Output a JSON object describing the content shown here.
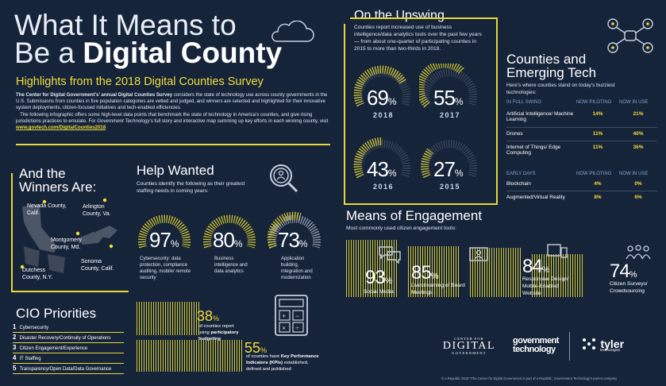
{
  "title": {
    "line1": "What It Means to",
    "line2a": "Be a ",
    "line2b": "Digital County"
  },
  "subtitle": "Highlights from the 2018 Digital Counties Survey",
  "intro": {
    "bold": "The Center for Digital Government's’ annual Digital Counties Survey",
    "text1": " considers the state of technology use across county governments in the U.S. Submissions from counties in five population categories are vetted and judged, and winners are selected and highlighted for their innovative system deployments, citizen-focused initiatives and tech-enabled efficiencies.",
    "text2": "The following infographic offers some high-level data points that benchmark the state of technology in America’s counties, and give rising jurisdictions practices to emulate. For ",
    "italic": "Government Technology",
    "text3": "’s full story and interactive map summing up key efforts in each winning county, visit ",
    "link": "www.govtech.com/DigitalCounties2018"
  },
  "winners": {
    "heading1": "And the",
    "heading2": "Winners Are:",
    "places": [
      "Nevada County, Calif.",
      "Arlington County, Va.",
      "Montgomery County, Md.",
      "Sonoma County, Calif.",
      "Dutchess County, N.Y."
    ]
  },
  "help": {
    "heading": "Help Wanted",
    "desc": "Counties identify the following as their greatest staffing needs in coming years:",
    "items": [
      {
        "value": "97",
        "label": "Cybersecurity: data protection, compliance auditing, mobile/ remote security"
      },
      {
        "value": "80",
        "label": "Business intelligence and data analytics"
      },
      {
        "value": "73",
        "label": "Application building, integration and modernization"
      }
    ]
  },
  "cio": {
    "heading": "CIO Priorities",
    "items": [
      {
        "n": "1",
        "label": "Cybersecurity"
      },
      {
        "n": "2",
        "label": "Disaster Recovery/Continuity of Operations"
      },
      {
        "n": "3",
        "label": "Citizen Engagement/Experience"
      },
      {
        "n": "4",
        "label": "IT Staffing"
      },
      {
        "n": "5",
        "label": "Transparency/Open Data/Data Governance"
      }
    ]
  },
  "budget": {
    "v1": "38",
    "t1a": "of counties report using ",
    "t1b": "participatory budgeting",
    "v2": "55",
    "t2a": "of counties have ",
    "t2b": "Key Performance Indicators (KPIs)",
    "t2c": " established, defined and published"
  },
  "upswing": {
    "heading": "On the Upswing",
    "desc": "Counties report increased use of business intelligence/data analytics tools over the past few years — from about one-quarter of participating counties in 2015 to more than two-thirds in 2018.",
    "gauges": [
      {
        "value": "69",
        "year": "2018"
      },
      {
        "value": "55",
        "year": "2017"
      },
      {
        "value": "43",
        "year": "2016"
      },
      {
        "value": "27",
        "year": "2015"
      }
    ]
  },
  "emerging": {
    "heading1": "Counties and",
    "heading2": "Emerging Tech",
    "desc": "Here’s where counties stand on today’s buzziest technologies:",
    "cols1": [
      "IN FULL SWING",
      "NOW PILOTING",
      "NOW IN USE"
    ],
    "rows1": [
      {
        "name": "Artificial Intelligence/ Machine Learning",
        "pilot": "14%",
        "use": "21%"
      },
      {
        "name": "Drones",
        "pilot": "11%",
        "use": "40%"
      },
      {
        "name": "Internet of Things/ Edge Computing",
        "pilot": "11%",
        "use": "36%"
      }
    ],
    "cols2": [
      "EARLY DAYS",
      "NOW PILOTING",
      "NOW IN USE"
    ],
    "rows2": [
      {
        "name": "Blockchain",
        "pilot": "4%",
        "use": "0%"
      },
      {
        "name": "Augmented/Virtual Reality",
        "pilot": "8%",
        "use": "6%"
      }
    ]
  },
  "engagement": {
    "heading": "Means of Engagement",
    "desc": "Most commonly used citizen engagement tools:",
    "items": [
      {
        "value": "93",
        "label": "Social Media"
      },
      {
        "value": "85",
        "label": "Livestreaming of Board Meetings"
      },
      {
        "value": "84",
        "label": "Responsive Design/ Mobile-Enabled Website"
      },
      {
        "value": "74",
        "label": "Citizen Surveys/ Crowdsourcing"
      }
    ]
  },
  "logos": {
    "cdg1": "CENTER FOR",
    "cdg2": "DIGITAL",
    "cdg3": "GOVERNMENT",
    "gt1": "government",
    "gt2": "technology",
    "tyler": "tyler",
    "tyler_sub": "technologies"
  },
  "footer": "© e.Republic 2018   *The Center for Digital Government is part of e.Republic, Government Technology's parent company",
  "pct": "%"
}
